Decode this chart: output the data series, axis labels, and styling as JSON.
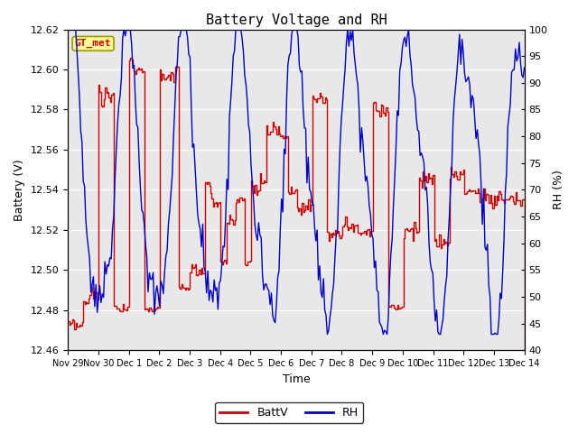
{
  "title": "Battery Voltage and RH",
  "xlabel": "Time",
  "ylabel_left": "Battery (V)",
  "ylabel_right": "RH (%)",
  "ylim_left": [
    12.46,
    12.62
  ],
  "ylim_right": [
    40,
    100
  ],
  "yticks_left": [
    12.46,
    12.48,
    12.5,
    12.52,
    12.54,
    12.56,
    12.58,
    12.6,
    12.62
  ],
  "yticks_right": [
    40,
    45,
    50,
    55,
    60,
    65,
    70,
    75,
    80,
    85,
    90,
    95,
    100
  ],
  "bg_color": "#e8e8e8",
  "line_color_battv": "#cc0000",
  "line_color_rh": "#0000cc",
  "label_box_color": "#ffff99",
  "label_box_edge": "#999900",
  "label_text": "GT_met",
  "label_text_color": "#cc0000",
  "legend_labels": [
    "BattV",
    "RH"
  ],
  "xtick_labels": [
    "Nov 29",
    "Nov 30",
    "Dec 1",
    "Dec 2",
    "Dec 3",
    "Dec 4",
    "Dec 5",
    "Dec 6",
    "Dec 7",
    "Dec 8",
    "Dec 9",
    "Dec 10",
    "Dec 11",
    "Dec 12",
    "Dec 13",
    "Dec 14"
  ],
  "title_fontsize": 11,
  "axis_label_fontsize": 9,
  "tick_fontsize": 8,
  "legend_fontsize": 9
}
